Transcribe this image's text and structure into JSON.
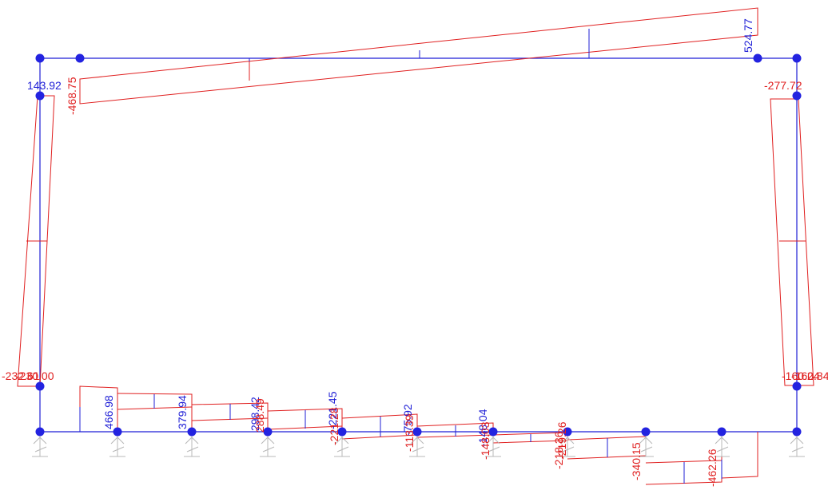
{
  "colors": {
    "frame": "#1f1fd6",
    "diagram": "#e02020",
    "support": "#b8b8b8",
    "node": "#2323e0"
  },
  "labels": {
    "top_beam_right": "524.77",
    "top_beam_left": "-468.75",
    "left_column_top": "143.92",
    "right_column_top": "-277.72",
    "left_column_bottom": "-232.61",
    "left_column_bottom_overlap": "-230.00",
    "right_column_bottom": "-160.24",
    "right_column_bottom_overlap": "-160.84",
    "base_1": "466.98",
    "base_2": "379.94",
    "base_3a": "298.42",
    "base_3b": "288.49",
    "base_4a": "-221.45",
    "base_4b": "-221.28",
    "base_5a": "-75.92",
    "base_5b": "-113.39",
    "base_6a": "-148.04",
    "base_6b": "-148.03",
    "base_7a": "-218.36",
    "base_7b": "-219.26",
    "base_8": "-340.15",
    "base_9": "-462.26"
  }
}
